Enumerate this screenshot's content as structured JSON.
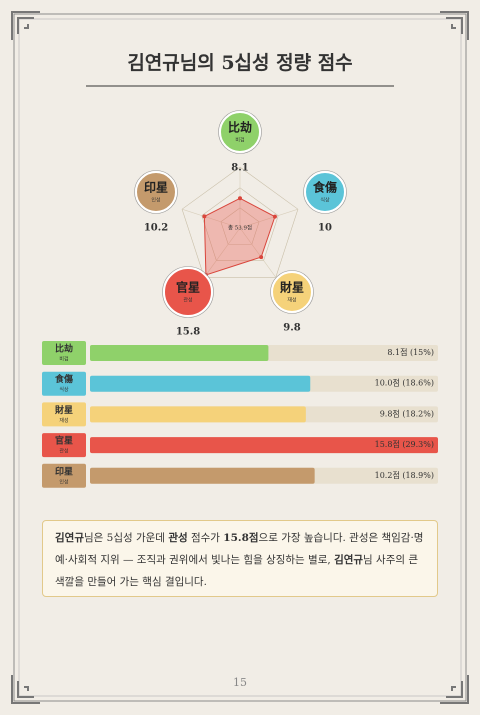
{
  "title": "김연규님의 5십성 정량 점수",
  "radar_center_label": "총 53.9점",
  "scores": [
    {
      "hanja": "比劫",
      "hangul": "비겁",
      "value": 8.1,
      "value_label": "8.1점 (15%)",
      "color": "#8fd16a"
    },
    {
      "hanja": "食傷",
      "hangul": "식상",
      "value": 10.0,
      "value_label": "10.0점 (18.6%)",
      "color": "#5bc4d8"
    },
    {
      "hanja": "財星",
      "hangul": "재성",
      "value": 9.8,
      "value_label": "9.8점 (18.2%)",
      "color": "#f5d27a"
    },
    {
      "hanja": "官星",
      "hangul": "관성",
      "value": 15.8,
      "value_label": "15.8점 (29.3%)",
      "color": "#e8554a"
    },
    {
      "hanja": "印星",
      "hangul": "인성",
      "value": 10.2,
      "value_label": "10.2점 (18.9%)",
      "color": "#c49a6c"
    }
  ],
  "summary": [
    {
      "text": "김연규",
      "bold": true
    },
    {
      "text": "님은 5십성 가운데 ",
      "bold": false
    },
    {
      "text": "관성",
      "bold": true
    },
    {
      "text": " 점수가 ",
      "bold": false
    },
    {
      "text": "15.8점",
      "bold": true
    },
    {
      "text": "으로 가장 높습니다. 관성은 책임감·명예·사회적 지위 — 조직과 권위에서 빛나는 힘을 상징하는 별로, ",
      "bold": false
    },
    {
      "text": "김연규",
      "bold": true
    },
    {
      "text": "님 사주의 큰 색깔을 만들어 가는 핵심 결입니다.",
      "bold": false
    }
  ],
  "page_number": "15"
}
